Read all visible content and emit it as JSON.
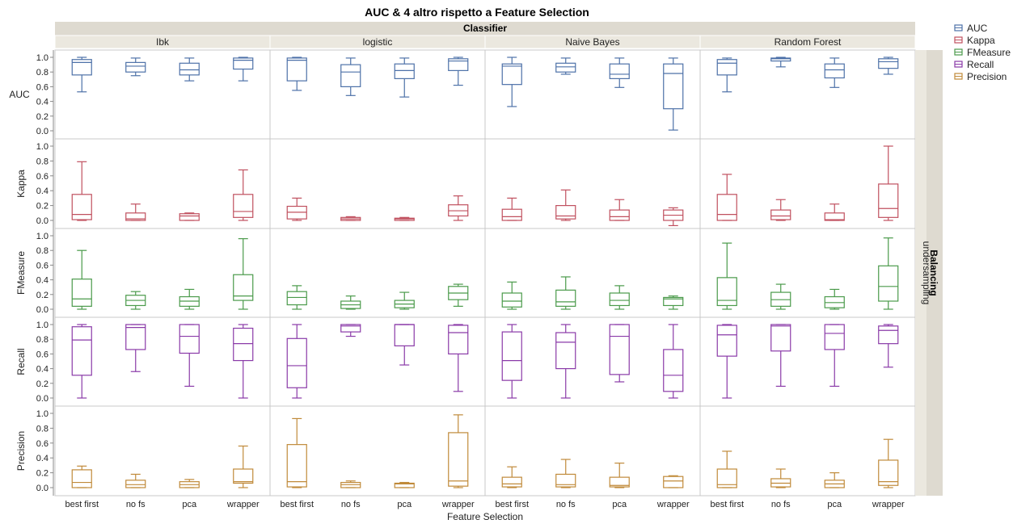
{
  "chart_data": {
    "type": "box",
    "title": "AUC & 4 altro rispetto a Feature Selection",
    "column_header": "Classifier",
    "row_header": "Balancing",
    "row_level": "undersampling",
    "xlabel": "Feature Selection",
    "classifiers": [
      "Ibk",
      "logistic",
      "Naive Bayes",
      "Random Forest"
    ],
    "feature_selection": [
      "best first",
      "no fs",
      "pca",
      "wrapper"
    ],
    "yticks": [
      "0.0",
      "0.2",
      "0.4",
      "0.6",
      "0.8",
      "1.0"
    ],
    "ylim": [
      0,
      1
    ],
    "metrics": [
      {
        "name": "AUC",
        "color": "#4d71a8",
        "boxes": [
          [
            [
              0.53,
              0.76,
              0.93,
              0.97,
              1.0
            ],
            [
              0.75,
              0.8,
              0.88,
              0.93,
              0.99
            ],
            [
              0.68,
              0.76,
              0.83,
              0.92,
              0.99
            ],
            [
              0.68,
              0.84,
              0.96,
              0.99,
              1.0
            ]
          ],
          [
            [
              0.55,
              0.68,
              0.96,
              0.99,
              1.0
            ],
            [
              0.48,
              0.6,
              0.8,
              0.9,
              0.99
            ],
            [
              0.46,
              0.71,
              0.82,
              0.91,
              0.99
            ],
            [
              0.62,
              0.82,
              0.95,
              0.98,
              1.0
            ]
          ],
          [
            [
              0.33,
              0.63,
              0.88,
              0.91,
              1.0
            ],
            [
              0.77,
              0.8,
              0.87,
              0.92,
              0.99
            ],
            [
              0.59,
              0.71,
              0.77,
              0.91,
              0.99
            ],
            [
              0.01,
              0.3,
              0.78,
              0.91,
              0.99
            ]
          ],
          [
            [
              0.53,
              0.76,
              0.92,
              0.97,
              0.99
            ],
            [
              0.87,
              0.95,
              0.98,
              0.99,
              1.0
            ],
            [
              0.59,
              0.72,
              0.83,
              0.91,
              0.99
            ],
            [
              0.77,
              0.85,
              0.94,
              0.98,
              1.0
            ]
          ]
        ]
      },
      {
        "name": "Kappa",
        "color": "#c0505f",
        "boxes": [
          [
            [
              0.0,
              0.01,
              0.08,
              0.35,
              0.79
            ],
            [
              0.0,
              0.0,
              0.02,
              0.1,
              0.22
            ],
            [
              0.0,
              0.0,
              0.06,
              0.09,
              0.1
            ],
            [
              0.0,
              0.04,
              0.12,
              0.35,
              0.68
            ]
          ],
          [
            [
              0.0,
              0.02,
              0.11,
              0.19,
              0.3
            ],
            [
              0.0,
              0.0,
              0.02,
              0.04,
              0.05
            ],
            [
              0.0,
              0.0,
              0.02,
              0.03,
              0.04
            ],
            [
              0.0,
              0.06,
              0.13,
              0.21,
              0.33
            ]
          ],
          [
            [
              0.0,
              0.0,
              0.05,
              0.15,
              0.3
            ],
            [
              0.0,
              0.02,
              0.06,
              0.2,
              0.41
            ],
            [
              0.0,
              0.0,
              0.05,
              0.14,
              0.28
            ],
            [
              -0.07,
              0.0,
              0.07,
              0.14,
              0.17
            ]
          ],
          [
            [
              0.0,
              0.0,
              0.08,
              0.35,
              0.62
            ],
            [
              0.0,
              0.01,
              0.06,
              0.14,
              0.28
            ],
            [
              0.0,
              0.0,
              0.01,
              0.1,
              0.22
            ],
            [
              0.0,
              0.04,
              0.16,
              0.49,
              1.0
            ]
          ]
        ]
      },
      {
        "name": "FMeasure",
        "color": "#4a9a4a",
        "boxes": [
          [
            [
              0.0,
              0.04,
              0.14,
              0.41,
              0.8
            ],
            [
              0.0,
              0.05,
              0.12,
              0.19,
              0.24
            ],
            [
              0.0,
              0.04,
              0.11,
              0.17,
              0.27
            ],
            [
              0.0,
              0.12,
              0.18,
              0.47,
              0.96
            ]
          ],
          [
            [
              0.0,
              0.06,
              0.16,
              0.24,
              0.32
            ],
            [
              0.0,
              0.01,
              0.06,
              0.11,
              0.18
            ],
            [
              0.0,
              0.02,
              0.07,
              0.12,
              0.23
            ],
            [
              0.04,
              0.13,
              0.22,
              0.31,
              0.34
            ]
          ],
          [
            [
              0.0,
              0.03,
              0.11,
              0.22,
              0.37
            ],
            [
              0.0,
              0.04,
              0.1,
              0.26,
              0.44
            ],
            [
              0.0,
              0.05,
              0.12,
              0.22,
              0.32
            ],
            [
              0.0,
              0.05,
              0.14,
              0.16,
              0.18
            ]
          ],
          [
            [
              0.0,
              0.05,
              0.12,
              0.43,
              0.9
            ],
            [
              0.0,
              0.04,
              0.13,
              0.23,
              0.34
            ],
            [
              0.0,
              0.02,
              0.09,
              0.17,
              0.27
            ],
            [
              0.0,
              0.11,
              0.31,
              0.59,
              0.97
            ]
          ]
        ]
      },
      {
        "name": "Recall",
        "color": "#8a3aa8",
        "boxes": [
          [
            [
              0.0,
              0.31,
              0.79,
              0.97,
              1.0
            ],
            [
              0.36,
              0.66,
              0.96,
              1.0,
              1.0
            ],
            [
              0.16,
              0.61,
              0.84,
              1.0,
              1.0
            ],
            [
              0.0,
              0.51,
              0.74,
              0.95,
              1.0
            ]
          ],
          [
            [
              0.0,
              0.14,
              0.44,
              0.81,
              1.0
            ],
            [
              0.84,
              0.9,
              0.98,
              1.0,
              1.0
            ],
            [
              0.45,
              0.71,
              1.0,
              1.0,
              1.0
            ],
            [
              0.09,
              0.6,
              0.89,
              0.99,
              1.0
            ]
          ],
          [
            [
              0.0,
              0.24,
              0.51,
              0.9,
              1.0
            ],
            [
              0.0,
              0.4,
              0.76,
              0.89,
              1.0
            ],
            [
              0.22,
              0.32,
              0.84,
              1.0,
              1.0
            ],
            [
              0.0,
              0.09,
              0.31,
              0.66,
              1.0
            ]
          ],
          [
            [
              0.0,
              0.57,
              0.86,
              0.99,
              1.0
            ],
            [
              0.16,
              0.64,
              0.98,
              1.0,
              1.0
            ],
            [
              0.16,
              0.66,
              0.88,
              1.0,
              1.0
            ],
            [
              0.42,
              0.74,
              0.92,
              0.98,
              1.0
            ]
          ]
        ]
      },
      {
        "name": "Precision",
        "color": "#c08a3a",
        "boxes": [
          [
            [
              0.0,
              0.0,
              0.07,
              0.24,
              0.29
            ],
            [
              0.0,
              0.0,
              0.04,
              0.1,
              0.18
            ],
            [
              0.0,
              0.0,
              0.04,
              0.08,
              0.11
            ],
            [
              0.0,
              0.06,
              0.08,
              0.25,
              0.56
            ]
          ],
          [
            [
              0.0,
              0.01,
              0.08,
              0.58,
              0.93
            ],
            [
              0.0,
              0.0,
              0.04,
              0.07,
              0.09
            ],
            [
              0.0,
              0.0,
              0.05,
              0.06,
              0.07
            ],
            [
              0.0,
              0.02,
              0.09,
              0.74,
              0.98
            ]
          ],
          [
            [
              0.0,
              0.01,
              0.05,
              0.14,
              0.28
            ],
            [
              0.0,
              0.01,
              0.04,
              0.18,
              0.38
            ],
            [
              0.0,
              0.01,
              0.03,
              0.14,
              0.33
            ],
            [
              0.0,
              0.0,
              0.09,
              0.15,
              0.16
            ]
          ],
          [
            [
              0.0,
              0.0,
              0.04,
              0.25,
              0.49
            ],
            [
              0.0,
              0.01,
              0.06,
              0.12,
              0.25
            ],
            [
              0.0,
              0.0,
              0.05,
              0.1,
              0.2
            ],
            [
              0.0,
              0.03,
              0.08,
              0.37,
              0.65
            ]
          ]
        ]
      }
    ]
  }
}
